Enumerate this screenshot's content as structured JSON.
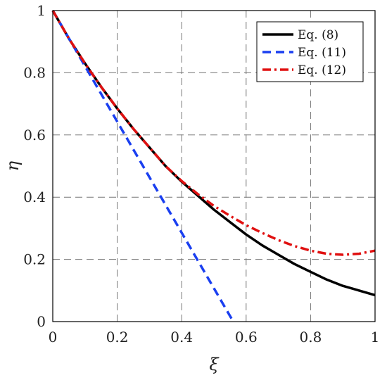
{
  "chart_data": {
    "type": "line",
    "title": "",
    "xlabel": "ξ",
    "ylabel": "η",
    "xlim": [
      0,
      1
    ],
    "ylim": [
      0,
      1
    ],
    "xticks": [
      0,
      0.2,
      0.4,
      0.6,
      0.8,
      1
    ],
    "yticks": [
      0,
      0.2,
      0.4,
      0.6,
      0.8,
      1
    ],
    "xtick_labels": [
      "0",
      "0.2",
      "0.4",
      "0.6",
      "0.8",
      "1"
    ],
    "ytick_labels": [
      "0",
      "0.2",
      "0.4",
      "0.6",
      "0.8",
      "1"
    ],
    "grid": true,
    "legend_position": "top-right",
    "series": [
      {
        "name": "Eq. (8)",
        "color": "#000000",
        "style": "solid",
        "x": [
          0,
          0.05,
          0.1,
          0.15,
          0.2,
          0.25,
          0.3,
          0.35,
          0.4,
          0.45,
          0.5,
          0.55,
          0.6,
          0.65,
          0.7,
          0.75,
          0.8,
          0.85,
          0.9,
          0.95,
          1.0
        ],
        "y": [
          1.0,
          0.91,
          0.83,
          0.755,
          0.685,
          0.62,
          0.56,
          0.5,
          0.45,
          0.405,
          0.36,
          0.32,
          0.28,
          0.245,
          0.215,
          0.185,
          0.16,
          0.135,
          0.115,
          0.1,
          0.085
        ]
      },
      {
        "name": "Eq. (11)",
        "color": "#1a3ff0",
        "style": "dashed",
        "x": [
          0,
          0.56
        ],
        "y": [
          1.0,
          0.0
        ]
      },
      {
        "name": "Eq. (12)",
        "color": "#e01010",
        "style": "dashdot",
        "x": [
          0,
          0.05,
          0.1,
          0.15,
          0.2,
          0.25,
          0.3,
          0.35,
          0.4,
          0.45,
          0.5,
          0.55,
          0.6,
          0.65,
          0.7,
          0.75,
          0.8,
          0.85,
          0.9,
          0.95,
          1.0
        ],
        "y": [
          1.0,
          0.91,
          0.83,
          0.755,
          0.685,
          0.62,
          0.56,
          0.5,
          0.452,
          0.41,
          0.372,
          0.34,
          0.31,
          0.285,
          0.262,
          0.243,
          0.228,
          0.218,
          0.215,
          0.218,
          0.228
        ]
      }
    ]
  }
}
